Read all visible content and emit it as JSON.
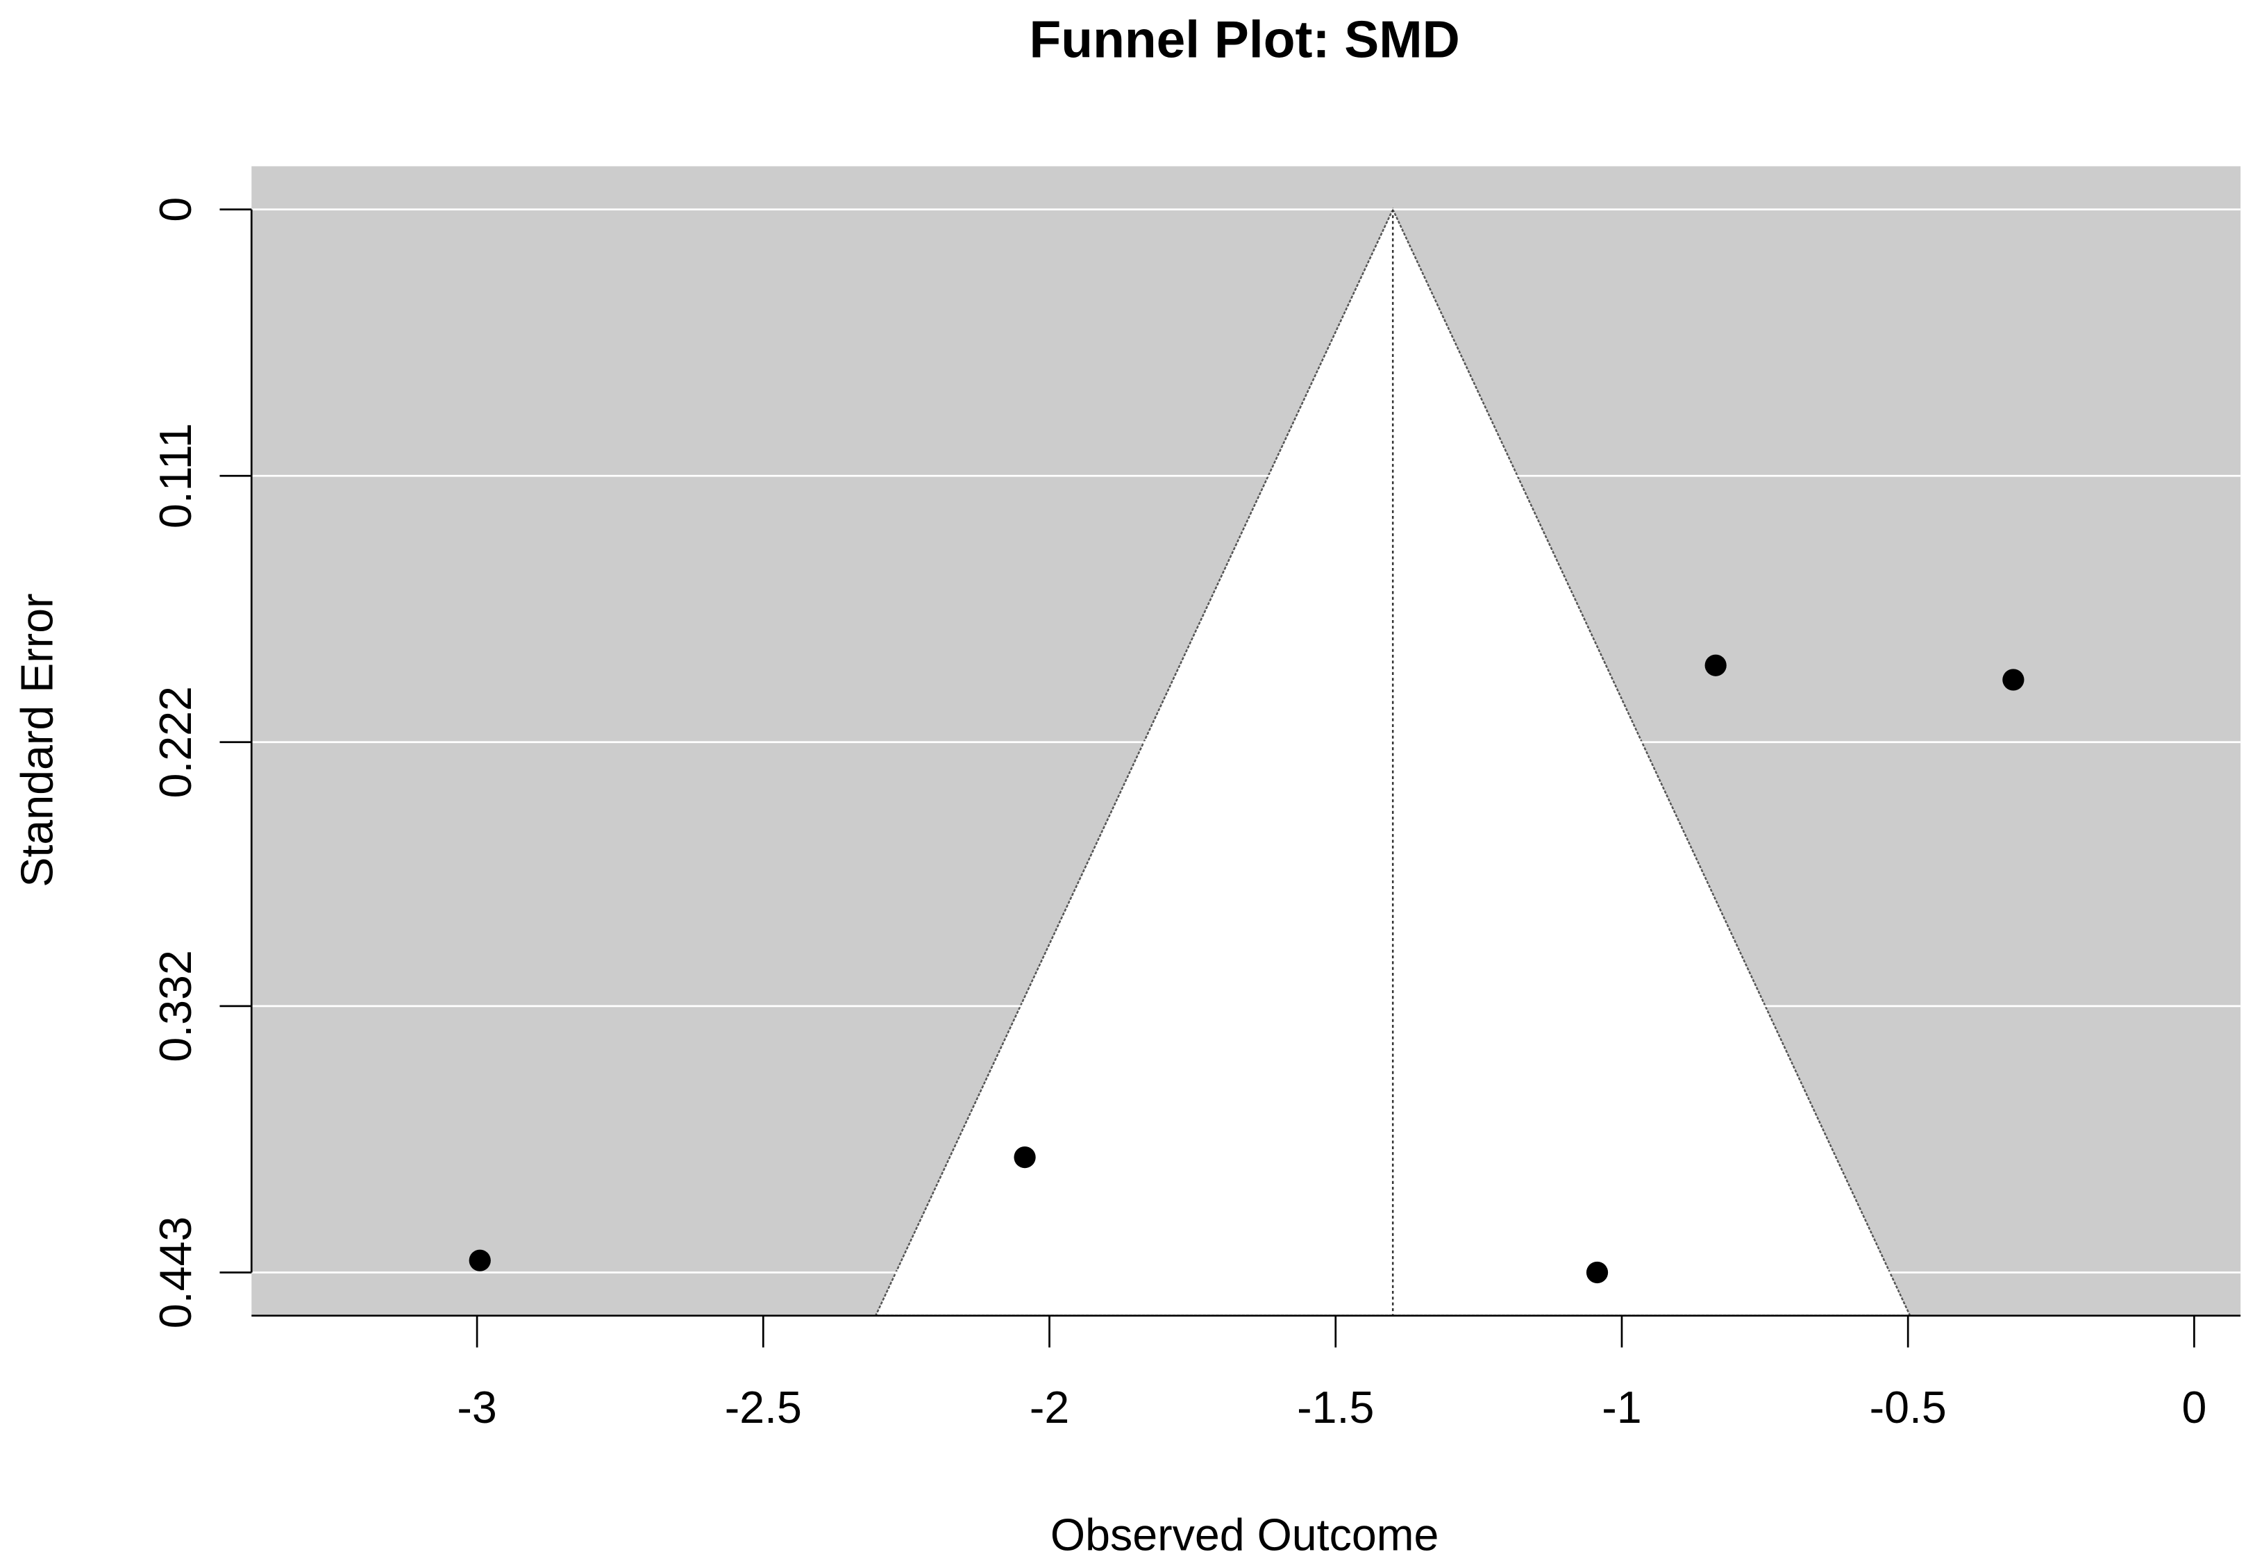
{
  "chart_data": {
    "type": "scatter",
    "title": "Funnel Plot: SMD",
    "xlabel": "Observed Outcome",
    "ylabel": "Standard Error",
    "x": [
      -2.995,
      -2.043,
      -1.043,
      -0.836,
      -0.316
    ],
    "y": [
      0.438,
      0.395,
      0.443,
      0.19,
      0.196
    ],
    "color": "#000000",
    "background": "#cccccc",
    "grid": true,
    "xlim": [
      -3.394,
      0.081
    ],
    "ylim": [
      -0.018,
      0.461
    ],
    "y_reversed": true,
    "xticks": [
      -3,
      -2.5,
      -2,
      -1.5,
      -1,
      -0.5,
      0
    ],
    "yticks": [
      0,
      0.111,
      0.222,
      0.332,
      0.443
    ],
    "estimate": -1.4,
    "funnel_z": 1.96
  }
}
